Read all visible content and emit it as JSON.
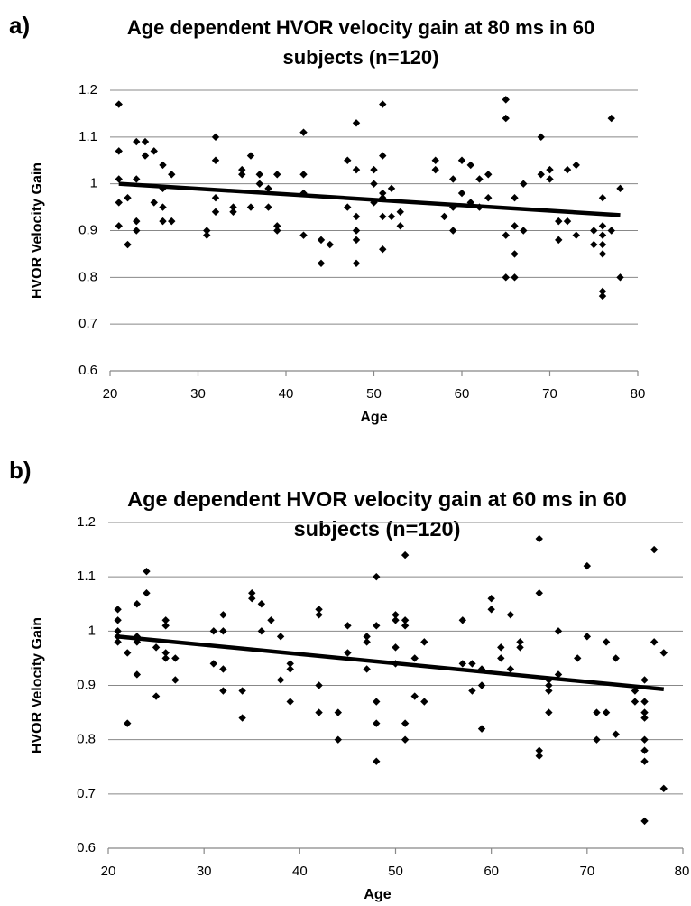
{
  "chart_data": [
    {
      "type": "scatter",
      "panel": "a)",
      "title": [
        "Age dependent HVOR velocity gain at 80 ms in 60",
        "subjects (n=120)"
      ],
      "x_label": "Age",
      "y_label": "HVOR Velocity Gain",
      "x": [
        21,
        21,
        21,
        21,
        21,
        22,
        22,
        23,
        23,
        23,
        23,
        24,
        24,
        25,
        25,
        26,
        26,
        26,
        26,
        27,
        27,
        31,
        31,
        32,
        32,
        32,
        32,
        34,
        34,
        35,
        35,
        36,
        36,
        37,
        37,
        38,
        38,
        39,
        39,
        39,
        42,
        42,
        42,
        42,
        44,
        44,
        45,
        47,
        47,
        48,
        48,
        48,
        48,
        48,
        48,
        50,
        50,
        50,
        51,
        51,
        51,
        51,
        51,
        51,
        52,
        52,
        53,
        53,
        57,
        57,
        58,
        59,
        59,
        59,
        60,
        60,
        61,
        61,
        62,
        62,
        63,
        63,
        65,
        65,
        65,
        65,
        66,
        66,
        66,
        66,
        67,
        67,
        69,
        69,
        70,
        70,
        71,
        71,
        72,
        72,
        73,
        73,
        75,
        75,
        76,
        76,
        76,
        76,
        76,
        76,
        76,
        77,
        77,
        78,
        78
      ],
      "y": [
        1.17,
        1.07,
        1.01,
        0.96,
        0.91,
        0.97,
        0.87,
        1.09,
        1.01,
        0.92,
        0.9,
        1.09,
        1.06,
        1.07,
        0.96,
        1.04,
        0.99,
        0.95,
        0.92,
        1.02,
        0.92,
        0.9,
        0.89,
        1.1,
        1.05,
        0.97,
        0.94,
        0.95,
        0.94,
        1.03,
        1.02,
        1.06,
        0.95,
        1.02,
        1.0,
        0.99,
        0.95,
        1.02,
        0.91,
        0.9,
        1.11,
        1.02,
        0.98,
        0.89,
        0.88,
        0.83,
        0.87,
        1.05,
        0.95,
        1.13,
        1.03,
        0.93,
        0.9,
        0.88,
        0.83,
        1.03,
        1.0,
        0.96,
        1.17,
        1.06,
        0.98,
        0.97,
        0.93,
        0.86,
        0.99,
        0.93,
        0.94,
        0.91,
        1.05,
        1.03,
        0.93,
        1.01,
        0.95,
        0.9,
        1.05,
        0.98,
        1.04,
        0.96,
        1.01,
        0.95,
        1.02,
        0.97,
        1.18,
        1.14,
        0.89,
        0.8,
        0.97,
        0.91,
        0.85,
        0.8,
        1.0,
        0.9,
        1.1,
        1.02,
        1.03,
        1.01,
        0.92,
        0.88,
        1.03,
        0.92,
        1.04,
        0.89,
        0.9,
        0.87,
        0.97,
        0.91,
        0.89,
        0.87,
        0.85,
        0.77,
        0.76,
        1.14,
        0.9,
        0.99,
        0.8
      ],
      "trendline": {
        "x": [
          21,
          78
        ],
        "y": [
          1.0,
          0.933
        ]
      },
      "color": "#000000",
      "xlim": [
        20,
        80
      ],
      "xticks": [
        20,
        30,
        40,
        50,
        60,
        70,
        80
      ],
      "ylim": [
        0.6,
        1.2
      ],
      "yticks": [
        0.6,
        0.7,
        0.8,
        0.9,
        1,
        1.1,
        1.2
      ],
      "grid": true
    },
    {
      "type": "scatter",
      "panel": "b)",
      "title": [
        "Age dependent HVOR velocity gain at 60 ms in 60",
        "subjects (n=120)"
      ],
      "x_label": "Age",
      "y_label": "HVOR Velocity Gain",
      "x": [
        21,
        21,
        21,
        21,
        21,
        22,
        22,
        23,
        23,
        23,
        23,
        24,
        24,
        25,
        25,
        26,
        26,
        26,
        26,
        27,
        27,
        31,
        31,
        32,
        32,
        32,
        32,
        34,
        34,
        35,
        35,
        36,
        36,
        37,
        38,
        38,
        39,
        39,
        39,
        42,
        42,
        42,
        42,
        44,
        44,
        45,
        45,
        47,
        47,
        47,
        48,
        48,
        48,
        48,
        48,
        50,
        50,
        50,
        50,
        51,
        51,
        51,
        51,
        51,
        52,
        52,
        53,
        53,
        57,
        57,
        58,
        58,
        59,
        59,
        59,
        60,
        60,
        61,
        61,
        62,
        62,
        63,
        63,
        65,
        65,
        65,
        65,
        66,
        66,
        66,
        66,
        67,
        67,
        69,
        70,
        70,
        71,
        71,
        72,
        72,
        73,
        73,
        75,
        75,
        76,
        76,
        76,
        76,
        76,
        76,
        76,
        76,
        77,
        77,
        78,
        78
      ],
      "y": [
        1.04,
        1.02,
        1.0,
        0.99,
        0.98,
        0.96,
        0.83,
        1.05,
        0.99,
        0.98,
        0.92,
        1.11,
        1.07,
        0.97,
        0.88,
        1.02,
        1.01,
        0.96,
        0.95,
        0.95,
        0.91,
        1.0,
        0.94,
        1.03,
        1.0,
        0.93,
        0.89,
        0.89,
        0.84,
        1.07,
        1.06,
        1.05,
        1.0,
        1.02,
        0.99,
        0.91,
        0.94,
        0.93,
        0.87,
        1.04,
        1.03,
        0.9,
        0.85,
        0.85,
        0.8,
        1.01,
        0.96,
        0.99,
        0.98,
        0.93,
        1.1,
        1.01,
        0.87,
        0.83,
        0.76,
        1.03,
        1.02,
        0.97,
        0.94,
        1.14,
        1.02,
        1.01,
        0.83,
        0.8,
        0.95,
        0.88,
        0.98,
        0.87,
        1.02,
        0.94,
        0.94,
        0.89,
        0.93,
        0.9,
        0.82,
        1.06,
        1.04,
        0.97,
        0.95,
        1.03,
        0.93,
        0.98,
        0.97,
        1.17,
        1.07,
        0.78,
        0.77,
        0.91,
        0.9,
        0.89,
        0.85,
        1.0,
        0.92,
        0.95,
        1.12,
        0.99,
        0.85,
        0.8,
        0.98,
        0.85,
        0.95,
        0.81,
        0.89,
        0.87,
        0.91,
        0.87,
        0.85,
        0.84,
        0.8,
        0.78,
        0.76,
        0.65,
        1.15,
        0.98,
        0.96,
        0.71
      ],
      "trendline": {
        "x": [
          21,
          78
        ],
        "y": [
          0.99,
          0.893
        ]
      },
      "color": "#000000",
      "xlim": [
        20,
        80
      ],
      "xticks": [
        20,
        30,
        40,
        50,
        60,
        70,
        80
      ],
      "ylim": [
        0.6,
        1.2
      ],
      "yticks": [
        0.6,
        0.7,
        0.8,
        0.9,
        1,
        1.1,
        1.2
      ],
      "grid": true
    }
  ]
}
